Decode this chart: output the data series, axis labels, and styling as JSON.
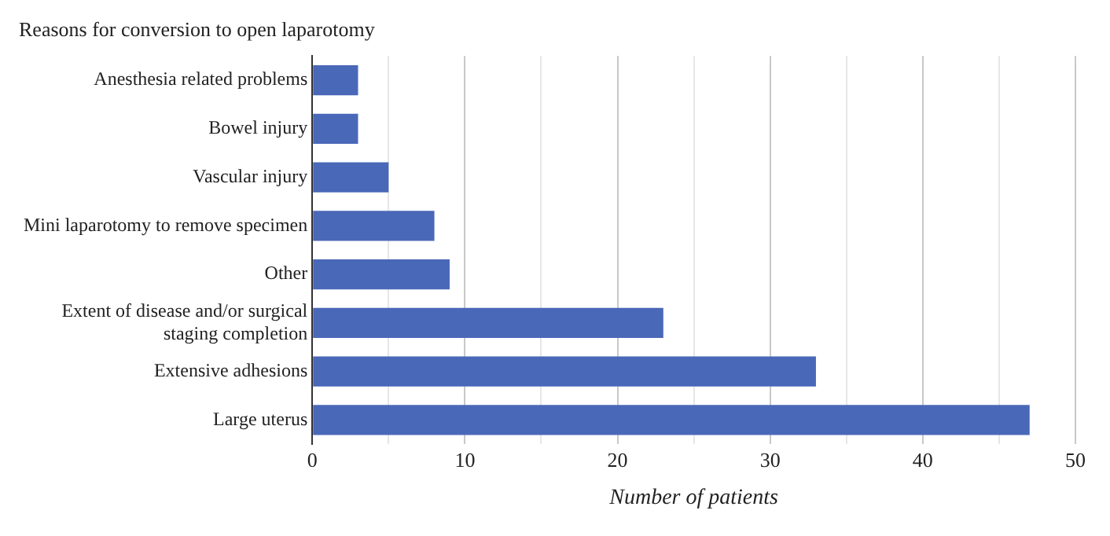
{
  "chart_data": {
    "type": "bar",
    "orientation": "horizontal",
    "title": "Reasons for conversion to open laparotomy",
    "xlabel": "Number of patients",
    "categories": [
      "Anesthesia related problems",
      "Bowel injury",
      "Vascular injury",
      "Mini laparotomy to remove specimen",
      "Other",
      "Extent of disease and/or surgical staging completion",
      "Extensive adhesions",
      "Large uterus"
    ],
    "values": [
      3,
      3,
      5,
      8,
      9,
      23,
      33,
      47
    ],
    "color": "#4a68b8",
    "xlim": [
      0,
      50
    ],
    "xticks": [
      0,
      {
        "value": 5,
        "label": null
      },
      10,
      {
        "value": 15,
        "label": null
      },
      20,
      {
        "value": 25,
        "label": null
      },
      30,
      {
        "value": 35,
        "label": null
      },
      40,
      {
        "value": 45,
        "label": null
      },
      50
    ],
    "grid": "x"
  }
}
